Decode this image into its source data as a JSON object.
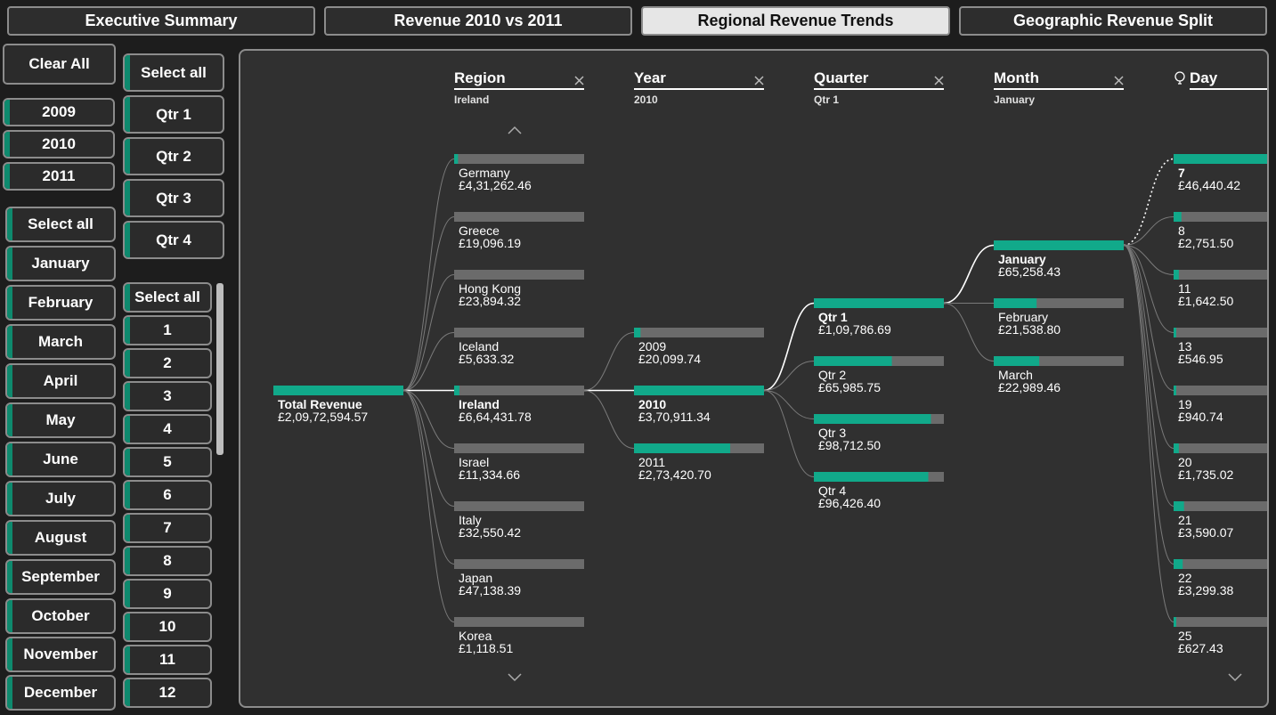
{
  "tabs": [
    {
      "label": "Executive Summary",
      "active": false
    },
    {
      "label": "Revenue 2010 vs 2011",
      "active": false
    },
    {
      "label": "Regional Revenue Trends",
      "active": true
    },
    {
      "label": "Geographic Revenue Split",
      "active": false
    }
  ],
  "clear_all": "Clear All",
  "years": [
    "2009",
    "2010",
    "2011"
  ],
  "months": [
    "Select all",
    "January",
    "February",
    "March",
    "April",
    "May",
    "June",
    "July",
    "August",
    "September",
    "October",
    "November",
    "December"
  ],
  "quarters": [
    "Select all",
    "Qtr 1",
    "Qtr 2",
    "Qtr 3",
    "Qtr 4"
  ],
  "days": [
    "Select all",
    "1",
    "2",
    "3",
    "4",
    "5",
    "6",
    "7",
    "8",
    "9",
    "10",
    "11",
    "12"
  ],
  "colors": {
    "accent": "#11a98a",
    "bar_track": "#6b6b6b",
    "canvas": "#303030"
  },
  "tree": {
    "root": {
      "label": "Total Revenue",
      "value": "£2,09,72,594.57"
    },
    "columns": [
      {
        "header": "Region",
        "filter": "Ireland",
        "closable": true,
        "icon": null,
        "nodes": [
          {
            "label": "Germany",
            "value": "£4,31,262.46",
            "fill": 0.03
          },
          {
            "label": "Greece",
            "value": "£19,096.19",
            "fill": 0.0
          },
          {
            "label": "Hong Kong",
            "value": "£23,894.32",
            "fill": 0.0
          },
          {
            "label": "Iceland",
            "value": "£5,633.32",
            "fill": 0.0
          },
          {
            "label": "Ireland",
            "value": "£6,64,431.78",
            "fill": 0.04,
            "selected": true
          },
          {
            "label": "Israel",
            "value": "£11,334.66",
            "fill": 0.0
          },
          {
            "label": "Italy",
            "value": "£32,550.42",
            "fill": 0.0
          },
          {
            "label": "Japan",
            "value": "£47,138.39",
            "fill": 0.0
          },
          {
            "label": "Korea",
            "value": "£1,118.51",
            "fill": 0.0
          }
        ]
      },
      {
        "header": "Year",
        "filter": "2010",
        "closable": true,
        "icon": null,
        "nodes": [
          {
            "label": "2009",
            "value": "£20,099.74",
            "fill": 0.05
          },
          {
            "label": "2010",
            "value": "£3,70,911.34",
            "fill": 1.0,
            "selected": true
          },
          {
            "label": "2011",
            "value": "£2,73,420.70",
            "fill": 0.74
          }
        ]
      },
      {
        "header": "Quarter",
        "filter": "Qtr 1",
        "closable": true,
        "icon": null,
        "nodes": [
          {
            "label": "Qtr 1",
            "value": "£1,09,786.69",
            "fill": 1.0,
            "selected": true
          },
          {
            "label": "Qtr 2",
            "value": "£65,985.75",
            "fill": 0.6
          },
          {
            "label": "Qtr 3",
            "value": "£98,712.50",
            "fill": 0.9
          },
          {
            "label": "Qtr 4",
            "value": "£96,426.40",
            "fill": 0.88
          }
        ]
      },
      {
        "header": "Month",
        "filter": "January",
        "closable": true,
        "icon": null,
        "nodes": [
          {
            "label": "January",
            "value": "£65,258.43",
            "fill": 1.0,
            "selected": true
          },
          {
            "label": "February",
            "value": "£21,538.80",
            "fill": 0.33
          },
          {
            "label": "March",
            "value": "£22,989.46",
            "fill": 0.35
          }
        ]
      },
      {
        "header": "Day",
        "filter": "",
        "closable": false,
        "icon": "lightbulb-icon",
        "nodes": [
          {
            "label": "7",
            "value": "£46,440.42",
            "fill": 1.0,
            "selected": true
          },
          {
            "label": "8",
            "value": "£2,751.50",
            "fill": 0.06
          },
          {
            "label": "11",
            "value": "£1,642.50",
            "fill": 0.04
          },
          {
            "label": "13",
            "value": "£546.95",
            "fill": 0.01
          },
          {
            "label": "19",
            "value": "£940.74",
            "fill": 0.02
          },
          {
            "label": "20",
            "value": "£1,735.02",
            "fill": 0.04
          },
          {
            "label": "21",
            "value": "£3,590.07",
            "fill": 0.08
          },
          {
            "label": "22",
            "value": "£3,299.38",
            "fill": 0.07
          },
          {
            "label": "25",
            "value": "£627.43",
            "fill": 0.01
          }
        ]
      }
    ]
  }
}
